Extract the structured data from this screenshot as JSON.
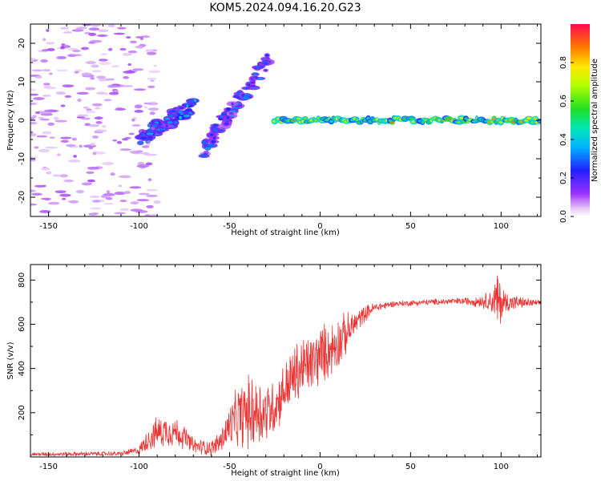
{
  "figure_title": "KOM5.2024.094.16.20.G23",
  "chart_data": [
    {
      "type": "heatmap",
      "title": "KOM5.2024.094.16.20.G23",
      "xlabel": "Height of straight line (km)",
      "ylabel": "Frequency (Hz)",
      "xlim": [
        -160,
        122
      ],
      "ylim": [
        -25,
        25
      ],
      "x_ticks": [
        -150,
        -100,
        -50,
        0,
        50,
        100
      ],
      "y_ticks": [
        -20,
        -10,
        0,
        10,
        20
      ],
      "colorbar": {
        "label": "Normalized spectral amplitude",
        "range": [
          0,
          1
        ],
        "ticks": [
          0.0,
          0.2,
          0.4,
          0.6,
          0.8
        ]
      },
      "grid": false,
      "legend": "none",
      "features": [
        {
          "feature": "steady carrier line",
          "x_range": [
            -25,
            122
          ],
          "frequency_hz": 0,
          "amplitude_range": [
            0.4,
            0.9
          ]
        },
        {
          "feature": "rising branch A",
          "x_range": [
            -100,
            -70
          ],
          "frequency_hz_range": [
            -5,
            4
          ],
          "amplitude_range": [
            0.2,
            0.45
          ]
        },
        {
          "feature": "rising branch B",
          "x_range": [
            -65,
            -28
          ],
          "frequency_hz_range": [
            -8,
            16
          ],
          "amplitude_range": [
            0.15,
            0.35
          ]
        },
        {
          "feature": "scattered noise",
          "x_range": [
            -160,
            -100
          ],
          "frequency_hz_range": [
            -25,
            25
          ],
          "amplitude_range": [
            0.0,
            0.1
          ]
        }
      ]
    },
    {
      "type": "line",
      "xlabel": "Height of straight line (km)",
      "ylabel": "SNR (v/v)",
      "xlim": [
        -160,
        122
      ],
      "ylim": [
        0,
        870
      ],
      "x_ticks": [
        -150,
        -100,
        -50,
        0,
        50,
        100
      ],
      "y_ticks": [
        200,
        400,
        600,
        800
      ],
      "grid": false,
      "legend": "none",
      "series": [
        {
          "color": "#ee3333",
          "envelope": [
            {
              "x": -160,
              "mean": 12,
              "spread": 10
            },
            {
              "x": -110,
              "mean": 15,
              "spread": 12
            },
            {
              "x": -100,
              "mean": 30,
              "spread": 20
            },
            {
              "x": -95,
              "mean": 80,
              "spread": 60
            },
            {
              "x": -90,
              "mean": 110,
              "spread": 80
            },
            {
              "x": -85,
              "mean": 120,
              "spread": 80
            },
            {
              "x": -80,
              "mean": 115,
              "spread": 80
            },
            {
              "x": -75,
              "mean": 90,
              "spread": 60
            },
            {
              "x": -70,
              "mean": 50,
              "spread": 40
            },
            {
              "x": -60,
              "mean": 40,
              "spread": 40
            },
            {
              "x": -55,
              "mean": 70,
              "spread": 60
            },
            {
              "x": -50,
              "mean": 140,
              "spread": 110
            },
            {
              "x": -45,
              "mean": 180,
              "spread": 160
            },
            {
              "x": -40,
              "mean": 200,
              "spread": 190
            },
            {
              "x": -35,
              "mean": 210,
              "spread": 190
            },
            {
              "x": -30,
              "mean": 200,
              "spread": 170
            },
            {
              "x": -25,
              "mean": 230,
              "spread": 140
            },
            {
              "x": -20,
              "mean": 300,
              "spread": 140
            },
            {
              "x": -15,
              "mean": 360,
              "spread": 160
            },
            {
              "x": -10,
              "mean": 400,
              "spread": 170
            },
            {
              "x": -5,
              "mean": 420,
              "spread": 150
            },
            {
              "x": 0,
              "mean": 460,
              "spread": 160
            },
            {
              "x": 5,
              "mean": 480,
              "spread": 140
            },
            {
              "x": 10,
              "mean": 520,
              "spread": 140
            },
            {
              "x": 15,
              "mean": 560,
              "spread": 100
            },
            {
              "x": 20,
              "mean": 610,
              "spread": 60
            },
            {
              "x": 25,
              "mean": 650,
              "spread": 40
            },
            {
              "x": 30,
              "mean": 675,
              "spread": 25
            },
            {
              "x": 40,
              "mean": 692,
              "spread": 15
            },
            {
              "x": 60,
              "mean": 700,
              "spread": 15
            },
            {
              "x": 80,
              "mean": 705,
              "spread": 18
            },
            {
              "x": 90,
              "mean": 705,
              "spread": 35
            },
            {
              "x": 95,
              "mean": 705,
              "spread": 60
            },
            {
              "x": 98,
              "mean": 700,
              "spread": 170
            },
            {
              "x": 102,
              "mean": 700,
              "spread": 60
            },
            {
              "x": 110,
              "mean": 698,
              "spread": 30
            },
            {
              "x": 122,
              "mean": 695,
              "spread": 12
            }
          ]
        }
      ]
    }
  ]
}
